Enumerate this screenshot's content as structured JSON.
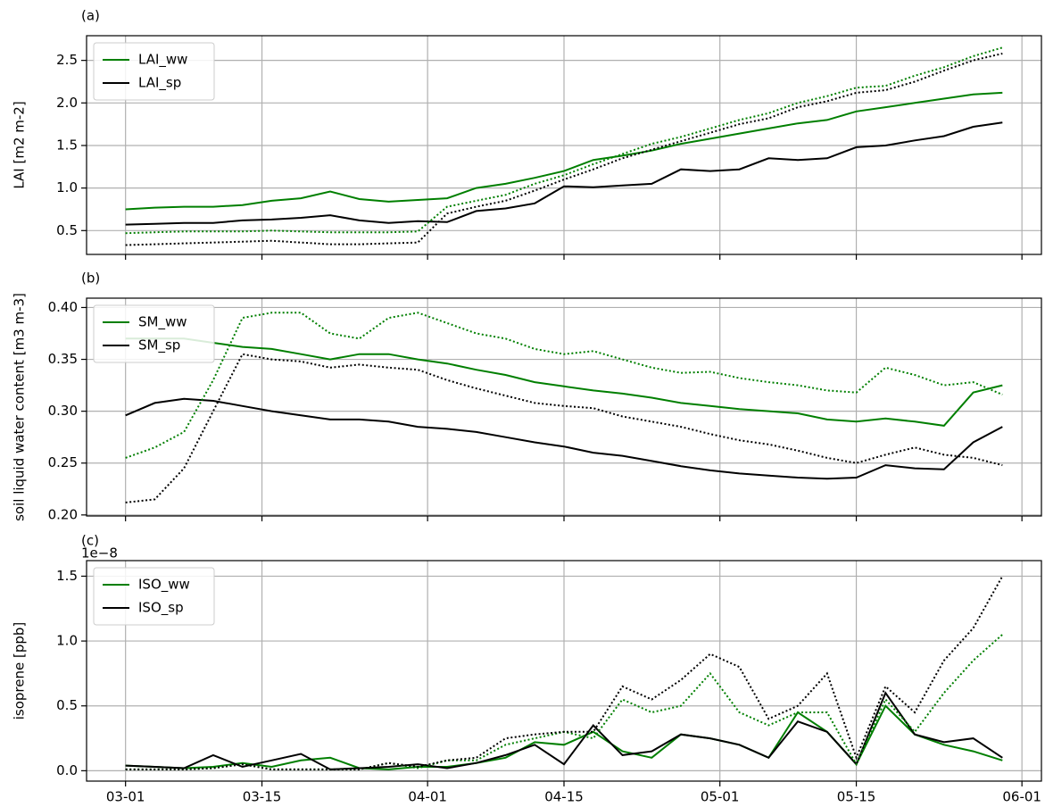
{
  "chart_data": [
    {
      "type": "line",
      "title": "(a)",
      "y_label": "LAI [m2 m-2]",
      "x": [
        "03-01",
        "03-04",
        "03-07",
        "03-10",
        "03-13",
        "03-16",
        "03-19",
        "03-22",
        "03-25",
        "03-28",
        "03-31",
        "04-03",
        "04-06",
        "04-09",
        "04-12",
        "04-15",
        "04-18",
        "04-21",
        "04-24",
        "04-27",
        "04-30",
        "05-03",
        "05-06",
        "05-09",
        "05-12",
        "05-15",
        "05-18",
        "05-21",
        "05-24",
        "05-27",
        "05-30"
      ],
      "xlim": [
        "02-25",
        "06-03"
      ],
      "xticks": [
        "03-01",
        "03-15",
        "04-01",
        "04-15",
        "05-01",
        "05-15",
        "06-01"
      ],
      "ylim": [
        0.22,
        2.79
      ],
      "yticks": [
        0.5,
        {
          "value": 1,
          "label": "1.0"
        },
        1.5,
        {
          "value": 2,
          "label": "2.0"
        },
        2.5
      ],
      "grid": true,
      "legend": "upper left",
      "series": [
        {
          "name": "LAI_ww",
          "color": "#007f00",
          "style": "solid",
          "values": [
            0.75,
            0.77,
            0.78,
            0.78,
            0.8,
            0.85,
            0.88,
            0.96,
            0.87,
            0.84,
            0.86,
            0.88,
            1.0,
            1.05,
            1.12,
            1.2,
            1.33,
            1.38,
            1.44,
            1.52,
            1.58,
            1.64,
            1.7,
            1.76,
            1.8,
            1.9,
            1.95,
            2.0,
            2.05,
            2.1,
            2.12
          ]
        },
        {
          "name": "LAI_sp",
          "color": "#000000",
          "style": "solid",
          "values": [
            0.57,
            0.58,
            0.59,
            0.59,
            0.62,
            0.63,
            0.65,
            0.68,
            0.62,
            0.59,
            0.61,
            0.6,
            0.73,
            0.76,
            0.82,
            1.02,
            1.01,
            1.03,
            1.05,
            1.22,
            1.2,
            1.22,
            1.35,
            1.33,
            1.35,
            1.48,
            1.5,
            1.56,
            1.61,
            1.72,
            1.77
          ]
        },
        {
          "color": "#007f00",
          "style": "dotted",
          "values": [
            0.47,
            0.48,
            0.49,
            0.49,
            0.49,
            0.5,
            0.49,
            0.48,
            0.48,
            0.48,
            0.49,
            0.78,
            0.85,
            0.92,
            1.05,
            1.15,
            1.28,
            1.4,
            1.52,
            1.6,
            1.7,
            1.8,
            1.88,
            2.0,
            2.08,
            2.18,
            2.2,
            2.32,
            2.42,
            2.55,
            2.65
          ]
        },
        {
          "color": "#000000",
          "style": "dotted",
          "values": [
            0.33,
            0.34,
            0.35,
            0.36,
            0.37,
            0.38,
            0.36,
            0.34,
            0.34,
            0.35,
            0.36,
            0.7,
            0.78,
            0.85,
            0.97,
            1.1,
            1.22,
            1.35,
            1.45,
            1.55,
            1.65,
            1.75,
            1.82,
            1.95,
            2.02,
            2.12,
            2.15,
            2.25,
            2.38,
            2.5,
            2.58
          ]
        }
      ]
    },
    {
      "type": "line",
      "title": "(b)",
      "y_label": "soil liquid water content [m3 m-3]",
      "x": [
        "03-01",
        "03-04",
        "03-07",
        "03-10",
        "03-13",
        "03-16",
        "03-19",
        "03-22",
        "03-25",
        "03-28",
        "03-31",
        "04-03",
        "04-06",
        "04-09",
        "04-12",
        "04-15",
        "04-18",
        "04-21",
        "04-24",
        "04-27",
        "04-30",
        "05-03",
        "05-06",
        "05-09",
        "05-12",
        "05-15",
        "05-18",
        "05-21",
        "05-24",
        "05-27",
        "05-30"
      ],
      "xlim": [
        "02-25",
        "06-03"
      ],
      "xticks": [
        "03-01",
        "03-15",
        "04-01",
        "04-15",
        "05-01",
        "05-15",
        "06-01"
      ],
      "ylim": [
        0.199,
        0.409
      ],
      "yticks": [
        {
          "value": 0.2,
          "label": "0.20"
        },
        0.25,
        {
          "value": 0.3,
          "label": "0.30"
        },
        0.35,
        {
          "value": 0.4,
          "label": "0.40"
        }
      ],
      "grid": true,
      "legend": "upper left",
      "series": [
        {
          "name": "SM_ww",
          "color": "#007f00",
          "style": "solid",
          "values": [
            0.37,
            0.37,
            0.37,
            0.366,
            0.362,
            0.36,
            0.355,
            0.35,
            0.355,
            0.355,
            0.35,
            0.346,
            0.34,
            0.335,
            0.328,
            0.324,
            0.32,
            0.317,
            0.313,
            0.308,
            0.305,
            0.302,
            0.3,
            0.298,
            0.292,
            0.29,
            0.293,
            0.29,
            0.286,
            0.318,
            0.325
          ]
        },
        {
          "name": "SM_sp",
          "color": "#000000",
          "style": "solid",
          "values": [
            0.296,
            0.308,
            0.312,
            0.31,
            0.305,
            0.3,
            0.296,
            0.292,
            0.292,
            0.29,
            0.285,
            0.283,
            0.28,
            0.275,
            0.27,
            0.266,
            0.26,
            0.257,
            0.252,
            0.247,
            0.243,
            0.24,
            0.238,
            0.236,
            0.235,
            0.236,
            0.248,
            0.245,
            0.244,
            0.27,
            0.285
          ]
        },
        {
          "color": "#007f00",
          "style": "dotted",
          "values": [
            0.255,
            0.265,
            0.28,
            0.33,
            0.39,
            0.395,
            0.395,
            0.375,
            0.37,
            0.39,
            0.395,
            0.385,
            0.375,
            0.37,
            0.36,
            0.355,
            0.358,
            0.35,
            0.342,
            0.337,
            0.338,
            0.332,
            0.328,
            0.325,
            0.32,
            0.318,
            0.342,
            0.335,
            0.325,
            0.328,
            0.316
          ]
        },
        {
          "color": "#000000",
          "style": "dotted",
          "values": [
            0.212,
            0.215,
            0.245,
            0.3,
            0.355,
            0.35,
            0.348,
            0.342,
            0.345,
            0.342,
            0.34,
            0.33,
            0.322,
            0.315,
            0.308,
            0.305,
            0.303,
            0.295,
            0.29,
            0.285,
            0.278,
            0.272,
            0.268,
            0.262,
            0.255,
            0.25,
            0.258,
            0.265,
            0.258,
            0.255,
            0.248
          ]
        }
      ]
    },
    {
      "type": "line",
      "title": "(c)",
      "y_label": "isoprene [ppb]",
      "offset_text": "1e−8",
      "x": [
        "03-01",
        "03-04",
        "03-07",
        "03-10",
        "03-13",
        "03-16",
        "03-19",
        "03-22",
        "03-25",
        "03-28",
        "03-31",
        "04-03",
        "04-06",
        "04-09",
        "04-12",
        "04-15",
        "04-18",
        "04-21",
        "04-24",
        "04-27",
        "04-30",
        "05-03",
        "05-06",
        "05-09",
        "05-12",
        "05-15",
        "05-18",
        "05-21",
        "05-24",
        "05-27",
        "05-30"
      ],
      "xlim": [
        "02-25",
        "06-03"
      ],
      "xticks": [
        "03-01",
        "03-15",
        "04-01",
        "04-15",
        "05-01",
        "05-15",
        "06-01"
      ],
      "ylim": [
        -0.08,
        1.62
      ],
      "yticks": [
        {
          "value": 0,
          "label": "0.0"
        },
        0.5,
        {
          "value": 1,
          "label": "1.0"
        },
        1.5
      ],
      "grid": true,
      "legend": "upper left",
      "series": [
        {
          "name": "ISO_ww",
          "color": "#007f00",
          "style": "solid",
          "values": [
            0.04,
            0.03,
            0.02,
            0.03,
            0.06,
            0.03,
            0.08,
            0.1,
            0.02,
            0.01,
            0.03,
            0.03,
            0.06,
            0.1,
            0.22,
            0.2,
            0.3,
            0.15,
            0.1,
            0.28,
            0.25,
            0.2,
            0.1,
            0.45,
            0.3,
            0.05,
            0.5,
            0.28,
            0.2,
            0.15,
            0.08
          ]
        },
        {
          "name": "ISO_sp",
          "color": "#000000",
          "style": "solid",
          "values": [
            0.04,
            0.03,
            0.02,
            0.12,
            0.03,
            0.08,
            0.13,
            0.01,
            0.02,
            0.03,
            0.05,
            0.02,
            0.06,
            0.12,
            0.2,
            0.05,
            0.35,
            0.12,
            0.15,
            0.28,
            0.25,
            0.2,
            0.1,
            0.38,
            0.3,
            0.05,
            0.6,
            0.28,
            0.22,
            0.25,
            0.1
          ]
        },
        {
          "color": "#007f00",
          "style": "dotted",
          "values": [
            0.01,
            0.01,
            0.01,
            0.02,
            0.05,
            0.01,
            0.01,
            0.01,
            0.01,
            0.06,
            0.02,
            0.08,
            0.08,
            0.2,
            0.25,
            0.3,
            0.25,
            0.55,
            0.45,
            0.5,
            0.75,
            0.45,
            0.35,
            0.45,
            0.45,
            0.05,
            0.55,
            0.3,
            0.6,
            0.85,
            1.05
          ]
        },
        {
          "color": "#000000",
          "style": "dotted",
          "values": [
            0.01,
            0.01,
            0.01,
            0.02,
            0.05,
            0.01,
            0.01,
            0.01,
            0.01,
            0.06,
            0.03,
            0.08,
            0.1,
            0.25,
            0.28,
            0.3,
            0.3,
            0.65,
            0.55,
            0.7,
            0.9,
            0.8,
            0.4,
            0.5,
            0.75,
            0.1,
            0.65,
            0.45,
            0.85,
            1.1,
            1.5
          ]
        }
      ]
    }
  ]
}
